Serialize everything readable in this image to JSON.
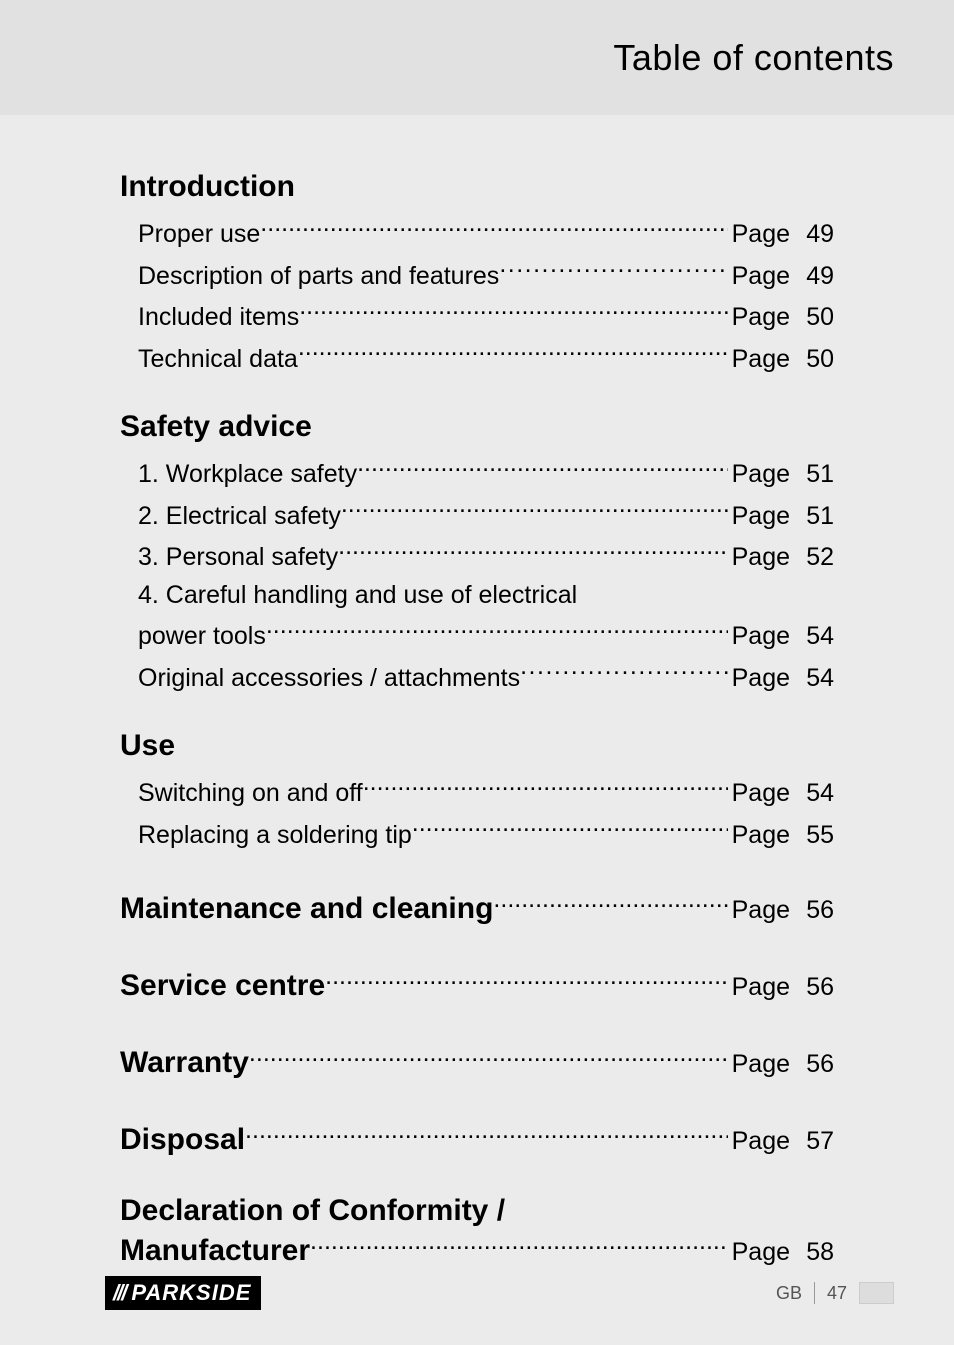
{
  "header": {
    "title": "Table of contents"
  },
  "page_word": "Page",
  "sections": [
    {
      "heading": "Introduction",
      "items": [
        {
          "label": "Proper use",
          "page": 49,
          "tight": true
        },
        {
          "label": "Description of parts and features",
          "page": 49,
          "tight": false
        },
        {
          "label": "Included items",
          "page": 50,
          "tight": true
        },
        {
          "label": "Technical data",
          "page": 50,
          "tight": true
        }
      ]
    },
    {
      "heading": "Safety advice",
      "items": [
        {
          "label": "1. Workplace safety",
          "page": 51,
          "tight": true
        },
        {
          "label": "2. Electrical safety",
          "page": 51,
          "tight": true
        },
        {
          "label": "3. Personal safety",
          "page": 52,
          "tight": true
        },
        {
          "label_multiline1": "4. Careful handling and use of electrical",
          "label": "power tools",
          "page": 54,
          "tight": true
        },
        {
          "label": "Original accessories / attachments",
          "page": 54,
          "tight": false
        }
      ]
    },
    {
      "heading": "Use",
      "items": [
        {
          "label": "Switching on and off",
          "page": 54,
          "tight": true
        },
        {
          "label": "Replacing a soldering tip",
          "page": 55,
          "tight": true
        }
      ]
    }
  ],
  "standalone": [
    {
      "heading": "Maintenance and cleaning",
      "page": 56,
      "tight": true
    },
    {
      "heading": "Service centre",
      "page": 56,
      "tight": true
    },
    {
      "heading": "Warranty",
      "page": 56,
      "tight": true
    },
    {
      "heading": "Disposal",
      "page": 57,
      "tight": true
    }
  ],
  "conformity": {
    "line1": "Declaration of Conformity /",
    "line2": "Manufacturer",
    "page": 58
  },
  "footer": {
    "brand": "PARKSIDE",
    "lang": "GB",
    "pagenum": "47"
  },
  "colors": {
    "page_bg": "#ebebeb",
    "header_bg": "#e1e1e1",
    "logo_bg": "#000000",
    "logo_fg": "#ffffff",
    "text": "#000000",
    "footer_text": "#555555"
  },
  "typography": {
    "header_title_size": 36,
    "section_heading_size": 30,
    "body_size": 25,
    "footer_size": 18
  }
}
